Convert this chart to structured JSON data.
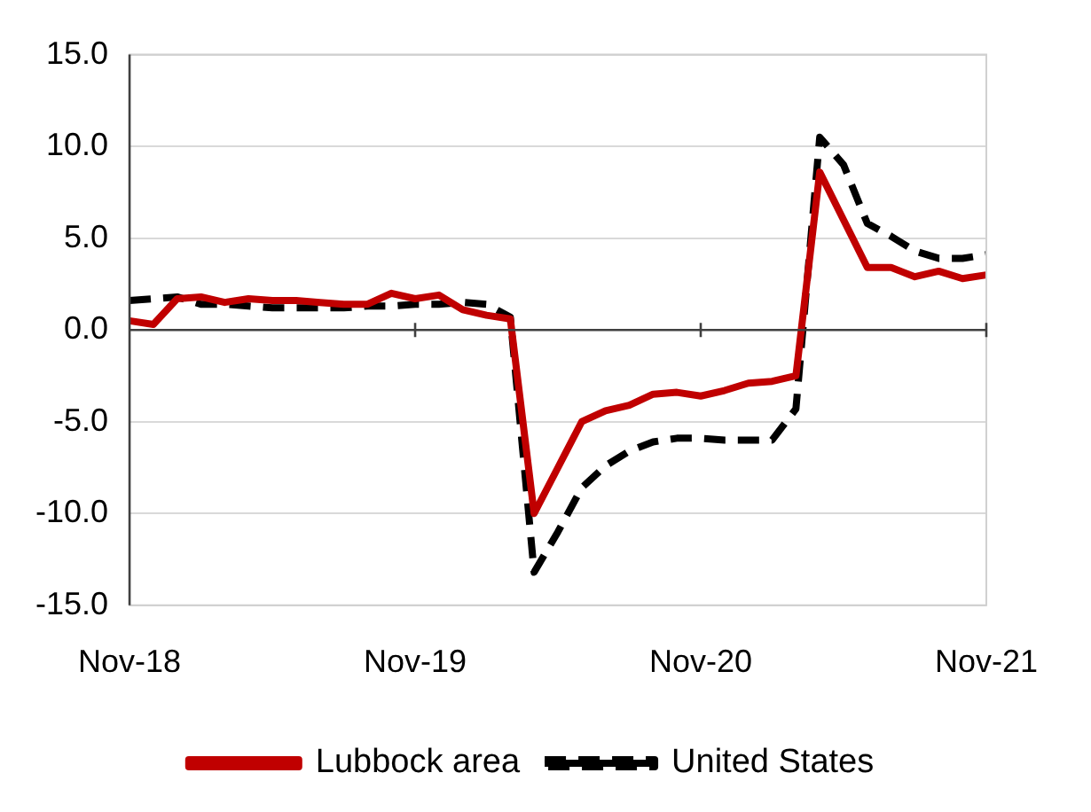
{
  "chart_data": {
    "type": "line",
    "categories": [
      "Nov-18",
      null,
      null,
      null,
      null,
      null,
      null,
      null,
      null,
      null,
      null,
      null,
      "Nov-19",
      null,
      null,
      null,
      null,
      null,
      null,
      null,
      null,
      null,
      null,
      null,
      "Nov-20",
      null,
      null,
      null,
      null,
      null,
      null,
      null,
      null,
      null,
      null,
      null,
      "Nov-21"
    ],
    "series": [
      {
        "name": "Lubbock area",
        "color": "#c00000",
        "line_style": "solid",
        "values": [
          0.5,
          0.3,
          1.7,
          1.8,
          1.5,
          1.7,
          1.6,
          1.6,
          1.5,
          1.4,
          1.4,
          2.0,
          1.7,
          1.9,
          1.1,
          0.8,
          0.6,
          -10.0,
          -7.5,
          -5.0,
          -4.4,
          -4.1,
          -3.5,
          -3.4,
          -3.6,
          -3.3,
          -2.9,
          -2.8,
          -2.5,
          8.6,
          6.0,
          3.4,
          3.4,
          2.9,
          3.2,
          2.8,
          3.0
        ]
      },
      {
        "name": "United States",
        "color": "#000000",
        "line_style": "dashed",
        "values": [
          1.6,
          1.7,
          1.8,
          1.4,
          1.4,
          1.3,
          1.2,
          1.2,
          1.2,
          1.2,
          1.3,
          1.3,
          1.4,
          1.4,
          1.5,
          1.4,
          0.7,
          -13.2,
          -11.0,
          -8.6,
          -7.4,
          -6.6,
          -6.1,
          -5.9,
          -5.9,
          -6.0,
          -6.0,
          -6.0,
          -4.3,
          10.5,
          9.0,
          5.8,
          5.1,
          4.3,
          3.9,
          3.9,
          4.1
        ]
      }
    ],
    "ylim": [
      -15,
      15
    ],
    "yticks": [
      {
        "value": -15,
        "label": "-15.0"
      },
      {
        "value": -10,
        "label": "-10.0"
      },
      {
        "value": -5,
        "label": "-5.0"
      },
      {
        "value": 0,
        "label": "0.0"
      },
      {
        "value": 5,
        "label": "5.0"
      },
      {
        "value": 10,
        "label": "10.0"
      },
      {
        "value": 15,
        "label": "15.0"
      }
    ],
    "grid": "y",
    "legend": "bottom",
    "marker": "none"
  }
}
